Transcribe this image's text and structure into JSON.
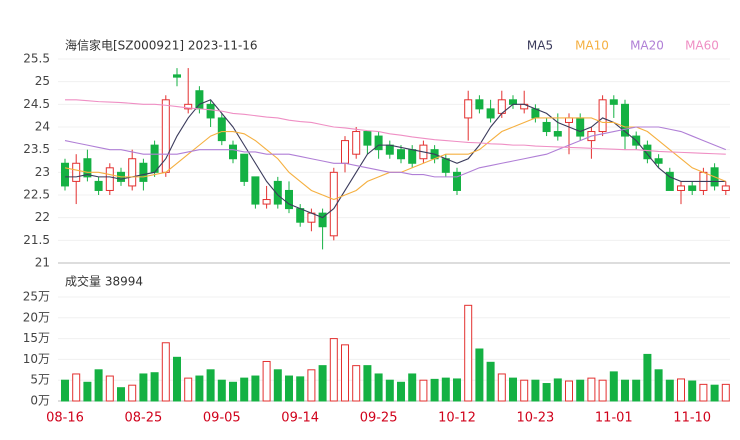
{
  "chart_data": {
    "type": "candlestick",
    "title": "海信家电[SZ000921] 2023-11-16",
    "categories": [
      "08-16",
      null,
      null,
      null,
      null,
      null,
      null,
      "08-25",
      null,
      null,
      null,
      null,
      null,
      null,
      "09-05",
      null,
      null,
      null,
      null,
      null,
      null,
      "09-14",
      null,
      null,
      null,
      null,
      null,
      null,
      "09-25",
      null,
      null,
      null,
      null,
      null,
      null,
      "10-12",
      null,
      null,
      null,
      null,
      null,
      null,
      "10-23",
      null,
      null,
      null,
      null,
      null,
      null,
      "11-01",
      null,
      null,
      null,
      null,
      null,
      null,
      "11-10",
      null,
      null,
      null
    ],
    "open": [
      23.2,
      22.8,
      23.3,
      22.8,
      22.6,
      23.0,
      22.7,
      23.2,
      23.6,
      23.0,
      25.15,
      24.4,
      24.8,
      24.5,
      24.2,
      23.6,
      23.4,
      22.9,
      22.3,
      22.8,
      22.6,
      22.2,
      21.9,
      22.1,
      21.6,
      23.2,
      23.4,
      23.9,
      23.8,
      23.6,
      23.5,
      23.5,
      23.3,
      23.5,
      23.3,
      23.0,
      24.2,
      24.6,
      24.4,
      24.3,
      24.6,
      24.4,
      24.4,
      24.1,
      23.9,
      24.1,
      24.2,
      23.7,
      23.9,
      24.6,
      24.5,
      23.8,
      23.6,
      23.3,
      23.0,
      22.6,
      22.7,
      22.6,
      23.1,
      22.6
    ],
    "high": [
      23.3,
      23.4,
      23.5,
      22.9,
      23.2,
      23.1,
      23.5,
      23.3,
      23.7,
      24.7,
      25.3,
      25.3,
      24.9,
      24.6,
      24.3,
      23.7,
      23.4,
      22.9,
      22.7,
      22.9,
      22.8,
      22.3,
      22.2,
      22.2,
      23.1,
      23.8,
      24.0,
      23.9,
      23.9,
      23.7,
      23.6,
      23.6,
      23.7,
      23.6,
      23.4,
      23.1,
      24.8,
      24.7,
      24.6,
      24.8,
      24.7,
      24.8,
      24.5,
      24.2,
      24.3,
      24.3,
      24.3,
      24.0,
      24.7,
      24.7,
      24.6,
      23.9,
      23.7,
      23.4,
      23.1,
      22.8,
      22.8,
      23.1,
      23.2,
      22.8
    ],
    "low": [
      22.6,
      22.3,
      22.8,
      22.5,
      22.5,
      22.7,
      22.6,
      22.6,
      22.9,
      22.9,
      24.9,
      24.3,
      24.3,
      24.0,
      23.6,
      23.2,
      22.7,
      22.2,
      22.2,
      22.2,
      22.1,
      21.8,
      21.7,
      21.3,
      21.5,
      23.0,
      23.3,
      23.4,
      23.3,
      23.3,
      23.2,
      23.1,
      23.2,
      23.2,
      22.9,
      22.5,
      23.7,
      24.3,
      24.1,
      24.2,
      24.4,
      24.3,
      24.1,
      23.8,
      23.7,
      23.4,
      23.7,
      23.3,
      23.8,
      24.2,
      23.5,
      23.5,
      23.2,
      23.1,
      22.6,
      22.3,
      22.5,
      22.5,
      22.6,
      22.5
    ],
    "close": [
      22.7,
      23.2,
      22.9,
      22.6,
      23.1,
      22.8,
      23.3,
      22.8,
      23.0,
      24.6,
      25.1,
      24.5,
      24.4,
      24.2,
      23.7,
      23.3,
      22.8,
      22.3,
      22.4,
      22.3,
      22.2,
      21.9,
      22.1,
      21.8,
      23.0,
      23.7,
      23.9,
      23.6,
      23.5,
      23.4,
      23.3,
      23.2,
      23.6,
      23.3,
      23.0,
      22.6,
      24.6,
      24.4,
      24.2,
      24.6,
      24.5,
      24.5,
      24.2,
      23.9,
      23.8,
      24.2,
      23.8,
      23.9,
      24.6,
      24.5,
      23.8,
      23.6,
      23.3,
      23.2,
      22.6,
      22.7,
      22.6,
      23.0,
      22.7,
      22.7
    ],
    "ylim": [
      21,
      25.5
    ],
    "yticks": [
      21,
      21.5,
      22,
      22.5,
      23,
      23.5,
      24,
      24.5,
      25,
      25.5
    ],
    "up_color": "#e3302f",
    "down_color": "#14b143",
    "overlays": [
      {
        "name": "MA5",
        "color": "#3b3b5c",
        "values": [
          22.9,
          22.9,
          22.95,
          22.9,
          22.9,
          22.85,
          22.9,
          22.95,
          23.0,
          23.3,
          23.8,
          24.2,
          24.5,
          24.6,
          24.3,
          24.0,
          23.6,
          23.2,
          22.8,
          22.5,
          22.3,
          22.2,
          22.1,
          22.0,
          22.2,
          22.6,
          23.0,
          23.4,
          23.6,
          23.6,
          23.55,
          23.5,
          23.45,
          23.4,
          23.3,
          23.2,
          23.3,
          23.6,
          24.0,
          24.3,
          24.5,
          24.5,
          24.4,
          24.3,
          24.1,
          24.0,
          23.9,
          24.0,
          24.2,
          24.1,
          23.9,
          23.7,
          23.4,
          23.1,
          22.9,
          22.8,
          22.8,
          22.8,
          22.8,
          22.8
        ]
      },
      {
        "name": "MA10",
        "color": "#f5b041",
        "values": [
          23.1,
          23.05,
          23.0,
          23.0,
          22.95,
          22.9,
          22.9,
          22.9,
          22.95,
          23.0,
          23.2,
          23.4,
          23.6,
          23.8,
          23.9,
          23.9,
          23.85,
          23.7,
          23.5,
          23.3,
          23.0,
          22.8,
          22.6,
          22.5,
          22.4,
          22.5,
          22.6,
          22.8,
          22.9,
          23.0,
          23.0,
          23.1,
          23.2,
          23.3,
          23.4,
          23.4,
          23.4,
          23.5,
          23.7,
          23.9,
          24.0,
          24.1,
          24.2,
          24.2,
          24.2,
          24.2,
          24.2,
          24.2,
          24.1,
          24.1,
          24.0,
          24.0,
          23.9,
          23.7,
          23.5,
          23.3,
          23.1,
          23.0,
          22.9,
          22.8
        ]
      },
      {
        "name": "MA20",
        "color": "#b07fd6",
        "values": [
          23.7,
          23.65,
          23.6,
          23.55,
          23.5,
          23.5,
          23.45,
          23.4,
          23.4,
          23.4,
          23.4,
          23.45,
          23.5,
          23.5,
          23.5,
          23.5,
          23.45,
          23.45,
          23.4,
          23.4,
          23.4,
          23.35,
          23.3,
          23.25,
          23.2,
          23.2,
          23.15,
          23.1,
          23.05,
          23.0,
          23.0,
          22.95,
          22.95,
          22.9,
          22.9,
          22.9,
          23.0,
          23.1,
          23.15,
          23.2,
          23.25,
          23.3,
          23.35,
          23.4,
          23.5,
          23.6,
          23.7,
          23.8,
          23.85,
          23.9,
          23.95,
          24.0,
          24.0,
          24.0,
          23.95,
          23.9,
          23.8,
          23.7,
          23.6,
          23.5
        ]
      },
      {
        "name": "MA60",
        "color": "#ef8fc4",
        "values": [
          24.6,
          24.6,
          24.58,
          24.56,
          24.55,
          24.54,
          24.52,
          24.5,
          24.5,
          24.48,
          24.45,
          24.42,
          24.4,
          24.38,
          24.35,
          24.3,
          24.28,
          24.25,
          24.22,
          24.2,
          24.15,
          24.12,
          24.1,
          24.05,
          24.0,
          23.98,
          23.95,
          23.92,
          23.9,
          23.85,
          23.82,
          23.78,
          23.75,
          23.72,
          23.7,
          23.68,
          23.66,
          23.65,
          23.63,
          23.62,
          23.6,
          23.6,
          23.58,
          23.57,
          23.56,
          23.55,
          23.54,
          23.53,
          23.52,
          23.51,
          23.5,
          23.5,
          23.48,
          23.46,
          23.45,
          23.44,
          23.43,
          23.42,
          23.41,
          23.4
        ]
      }
    ],
    "volume_title": "成交量 38994",
    "volume": [
      5,
      6.5,
      4.5,
      7.5,
      6,
      3.2,
      3.8,
      6.5,
      6.8,
      14,
      10.5,
      5.5,
      6,
      7.5,
      5,
      4.5,
      5.5,
      6,
      9.5,
      7.5,
      6,
      5.8,
      7.5,
      8.5,
      15,
      13.5,
      8.5,
      8.5,
      6.5,
      5,
      4.5,
      6.5,
      5,
      5.2,
      5.5,
      5.3,
      23,
      12.5,
      9.3,
      6.5,
      5.5,
      5,
      5,
      4.2,
      5.3,
      4.8,
      5,
      5.5,
      5,
      7,
      5,
      5,
      11.2,
      7.5,
      5,
      5.3,
      4.8,
      4,
      3.8,
      4
    ],
    "volume_ylim": [
      0,
      25
    ],
    "volume_yticks": [
      {
        "value": 0,
        "label": "0万"
      },
      {
        "value": 5,
        "label": "5万"
      },
      {
        "value": 10,
        "label": "10万"
      },
      {
        "value": 15,
        "label": "15万"
      },
      {
        "value": 20,
        "label": "20万"
      },
      {
        "value": 25,
        "label": "25万"
      }
    ]
  }
}
